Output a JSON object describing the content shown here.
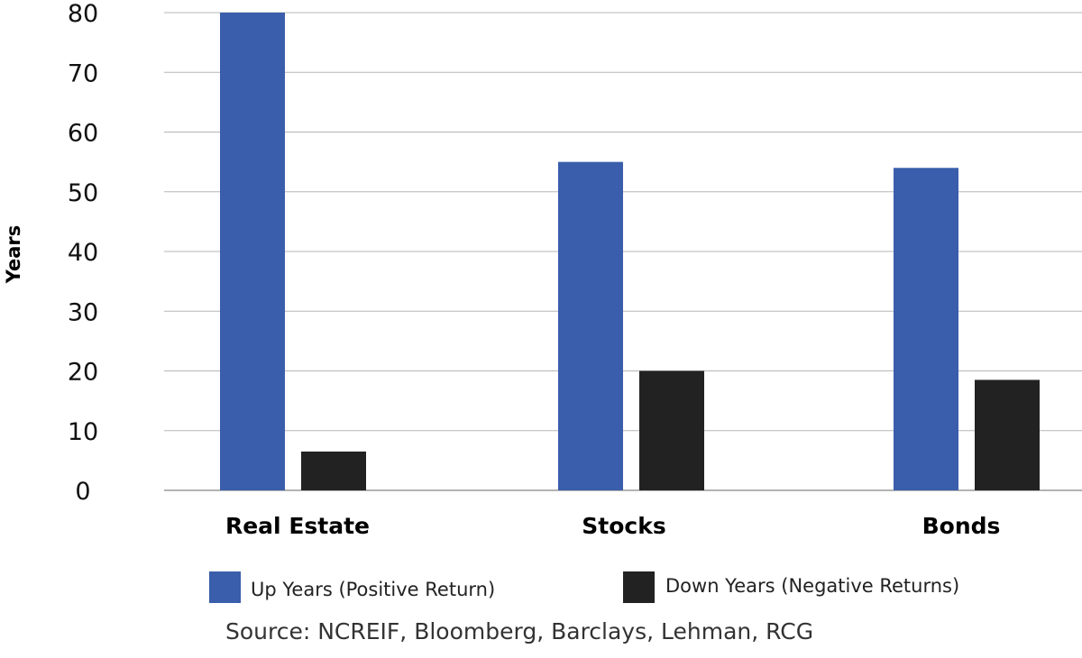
{
  "chart_data": {
    "type": "bar",
    "categories": [
      "Real Estate",
      "Stocks",
      "Bonds"
    ],
    "series": [
      {
        "name": "Up Years (Positive Return)",
        "values": [
          80,
          55,
          54
        ],
        "color": "#3a5eab"
      },
      {
        "name": "Down Years (Negative Returns)",
        "values": [
          6.5,
          20,
          18.5
        ],
        "color": "#222222"
      }
    ],
    "title": "",
    "xlabel": "",
    "ylabel": "Years",
    "ylim": [
      0,
      80
    ],
    "yticks": [
      0,
      10,
      20,
      30,
      40,
      50,
      60,
      70,
      80
    ],
    "grid": true,
    "legend_position": "bottom",
    "source": "Source: NCREIF, Bloomberg, Barclays, Lehman, RCG"
  }
}
